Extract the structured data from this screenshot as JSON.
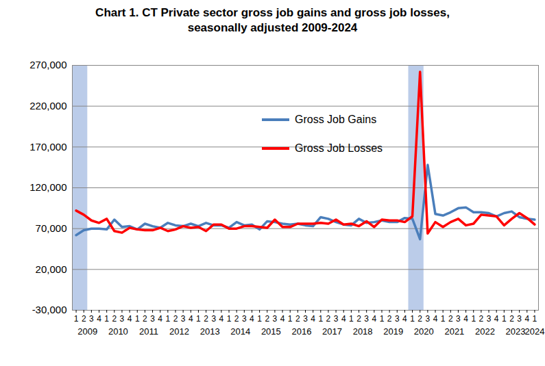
{
  "chart_data": {
    "type": "line",
    "title": "Chart 1. CT Private sector gross job gains and gross job losses,",
    "subtitle": "seasonally adjusted 2009-2024",
    "categories": [
      "1",
      "2",
      "3",
      "4",
      "1",
      "2",
      "3",
      "4",
      "1",
      "2",
      "3",
      "4",
      "1",
      "2",
      "3",
      "4",
      "1",
      "2",
      "3",
      "4",
      "1",
      "2",
      "3",
      "4",
      "1",
      "2",
      "3",
      "4",
      "1",
      "2",
      "3",
      "4",
      "1",
      "2",
      "3",
      "4",
      "1",
      "2",
      "3",
      "4",
      "1",
      "2",
      "3",
      "4",
      "1",
      "2",
      "3",
      "4",
      "1",
      "2",
      "3",
      "4",
      "1",
      "2",
      "3",
      "4",
      "1",
      "2",
      "3",
      "4",
      "1"
    ],
    "group_labels": [
      "2009",
      "2010",
      "2011",
      "2012",
      "2013",
      "2014",
      "2015",
      "2016",
      "2017",
      "2018",
      "2019",
      "2020",
      "2021",
      "2022",
      "2023",
      "2024"
    ],
    "shaded": [
      {
        "group": "2009",
        "from": "1",
        "to": "2"
      },
      {
        "group": "2020",
        "from": "1",
        "to": "2"
      }
    ],
    "series": [
      {
        "name": "Gross Job Gains",
        "color": "#4a7ebb",
        "values": [
          62000,
          68000,
          70000,
          70000,
          69000,
          81000,
          72000,
          73000,
          69000,
          76000,
          73000,
          71000,
          77000,
          74000,
          73000,
          76000,
          73000,
          77000,
          74000,
          74000,
          71000,
          78000,
          74000,
          75000,
          69000,
          79000,
          78000,
          76000,
          75000,
          76000,
          74000,
          73000,
          84000,
          82000,
          78000,
          75000,
          74000,
          82000,
          77000,
          78000,
          80000,
          78000,
          78000,
          83000,
          82000,
          57000,
          148000,
          88000,
          86000,
          90000,
          95000,
          96000,
          90000,
          90000,
          89000,
          85000,
          89000,
          91000,
          84000,
          82000,
          81000
        ]
      },
      {
        "name": "Gross Job Losses",
        "color": "#ff0000",
        "values": [
          92000,
          87000,
          80000,
          77000,
          82000,
          67000,
          65000,
          71000,
          69000,
          68000,
          68000,
          71000,
          67000,
          69000,
          73000,
          71000,
          72000,
          67000,
          75000,
          75000,
          70000,
          70000,
          73000,
          73000,
          72000,
          71000,
          81000,
          72000,
          72000,
          76000,
          76000,
          76000,
          77000,
          76000,
          81000,
          75000,
          76000,
          73000,
          79000,
          72000,
          81000,
          80000,
          80000,
          78000,
          85000,
          262000,
          64000,
          78000,
          72000,
          78000,
          82000,
          74000,
          76000,
          87000,
          86000,
          85000,
          74000,
          82000,
          89000,
          83000,
          75000
        ]
      }
    ],
    "ylim": [
      -30000,
      270000
    ],
    "yticks": [
      {
        "value": -30000,
        "label": "-30,000"
      },
      {
        "value": 20000,
        "label": "20,000"
      },
      {
        "value": 70000,
        "label": "70,000"
      },
      {
        "value": 120000,
        "label": "120,000"
      },
      {
        "value": 170000,
        "label": "170,000"
      },
      {
        "value": 220000,
        "label": "220,000"
      },
      {
        "value": 270000,
        "label": "270,000"
      }
    ],
    "grid": true,
    "legend": "top"
  }
}
